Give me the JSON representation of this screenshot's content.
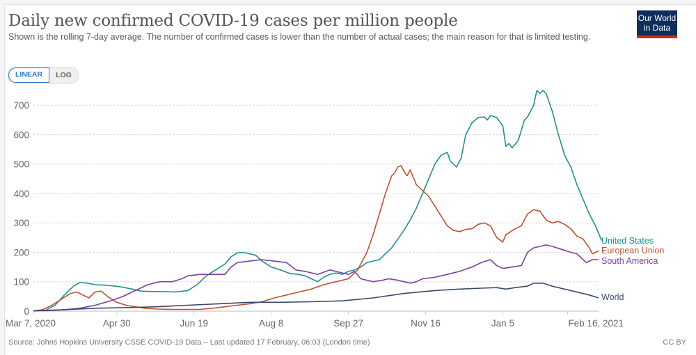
{
  "header": {
    "title": "Daily new confirmed COVID-19 cases per million people",
    "subtitle": "Shown is the rolling 7-day average. The number of confirmed cases is lower than the number of actual cases; the main reason for that is limited testing.",
    "logo_line1": "Our World",
    "logo_line2": "in Data"
  },
  "toggle": {
    "options": [
      "LINEAR",
      "LOG"
    ],
    "selected": "LINEAR"
  },
  "footer": {
    "source": "Source: Johns Hopkins University CSSE COVID-19 Data – Last updated 17 February, 06:03 (London time)",
    "license": "CC BY"
  },
  "chart_data": {
    "type": "line",
    "title": "Daily new confirmed COVID-19 cases per million people",
    "xlabel": "",
    "ylabel": "",
    "x_unit": "days since Mar 7, 2020",
    "x_range": [
      0,
      346
    ],
    "ylim": [
      0,
      750
    ],
    "y_ticks": [
      0,
      100,
      200,
      300,
      400,
      500,
      600,
      700
    ],
    "x_ticks": [
      {
        "day": 0,
        "label": "Mar 7, 2020"
      },
      {
        "day": 54,
        "label": "Apr 30"
      },
      {
        "day": 104,
        "label": "Jun 19"
      },
      {
        "day": 154,
        "label": "Aug 8"
      },
      {
        "day": 204,
        "label": "Sep 27"
      },
      {
        "day": 254,
        "label": "Nov 16"
      },
      {
        "day": 304,
        "label": "Jan 5"
      },
      {
        "day": 346,
        "label": "Feb 16, 2021"
      }
    ],
    "grid": "horizontal dashed",
    "legend": "right, end-of-line labels",
    "series": [
      {
        "name": "United States",
        "color": "#1f8f8f",
        "points": [
          [
            0,
            1
          ],
          [
            8,
            3
          ],
          [
            14,
            20
          ],
          [
            20,
            55
          ],
          [
            26,
            85
          ],
          [
            30,
            97
          ],
          [
            34,
            96
          ],
          [
            40,
            90
          ],
          [
            48,
            88
          ],
          [
            56,
            83
          ],
          [
            64,
            75
          ],
          [
            70,
            68
          ],
          [
            76,
            67
          ],
          [
            84,
            66
          ],
          [
            92,
            65
          ],
          [
            100,
            70
          ],
          [
            106,
            90
          ],
          [
            112,
            120
          ],
          [
            118,
            140
          ],
          [
            124,
            160
          ],
          [
            128,
            185
          ],
          [
            132,
            198
          ],
          [
            136,
            200
          ],
          [
            140,
            195
          ],
          [
            144,
            190
          ],
          [
            148,
            170
          ],
          [
            154,
            150
          ],
          [
            160,
            140
          ],
          [
            166,
            128
          ],
          [
            172,
            125
          ],
          [
            176,
            120
          ],
          [
            180,
            110
          ],
          [
            184,
            100
          ],
          [
            188,
            115
          ],
          [
            192,
            125
          ],
          [
            196,
            130
          ],
          [
            200,
            125
          ],
          [
            204,
            135
          ],
          [
            208,
            140
          ],
          [
            212,
            150
          ],
          [
            216,
            165
          ],
          [
            220,
            170
          ],
          [
            224,
            175
          ],
          [
            228,
            195
          ],
          [
            232,
            215
          ],
          [
            236,
            245
          ],
          [
            240,
            275
          ],
          [
            244,
            310
          ],
          [
            248,
            350
          ],
          [
            252,
            400
          ],
          [
            256,
            450
          ],
          [
            260,
            500
          ],
          [
            264,
            530
          ],
          [
            268,
            540
          ],
          [
            270,
            510
          ],
          [
            274,
            490
          ],
          [
            277,
            520
          ],
          [
            280,
            600
          ],
          [
            284,
            640
          ],
          [
            288,
            658
          ],
          [
            292,
            660
          ],
          [
            294,
            650
          ],
          [
            296,
            665
          ],
          [
            300,
            658
          ],
          [
            304,
            630
          ],
          [
            306,
            560
          ],
          [
            308,
            570
          ],
          [
            310,
            555
          ],
          [
            314,
            580
          ],
          [
            318,
            650
          ],
          [
            320,
            660
          ],
          [
            324,
            700
          ],
          [
            326,
            750
          ],
          [
            328,
            740
          ],
          [
            330,
            750
          ],
          [
            332,
            740
          ],
          [
            336,
            680
          ],
          [
            340,
            600
          ],
          [
            344,
            530
          ],
          [
            348,
            490
          ],
          [
            352,
            430
          ],
          [
            356,
            380
          ],
          [
            360,
            330
          ],
          [
            364,
            290
          ],
          [
            368,
            240
          ]
        ]
      },
      {
        "name": "European Union",
        "color": "#c1502e",
        "points": [
          [
            0,
            1
          ],
          [
            6,
            5
          ],
          [
            12,
            20
          ],
          [
            18,
            40
          ],
          [
            24,
            60
          ],
          [
            28,
            65
          ],
          [
            32,
            55
          ],
          [
            36,
            45
          ],
          [
            40,
            65
          ],
          [
            44,
            68
          ],
          [
            48,
            50
          ],
          [
            54,
            30
          ],
          [
            60,
            20
          ],
          [
            66,
            15
          ],
          [
            72,
            10
          ],
          [
            80,
            7
          ],
          [
            90,
            6
          ],
          [
            100,
            6
          ],
          [
            108,
            6
          ],
          [
            116,
            10
          ],
          [
            124,
            15
          ],
          [
            132,
            20
          ],
          [
            140,
            25
          ],
          [
            148,
            32
          ],
          [
            156,
            45
          ],
          [
            164,
            55
          ],
          [
            172,
            65
          ],
          [
            180,
            75
          ],
          [
            188,
            90
          ],
          [
            196,
            100
          ],
          [
            204,
            110
          ],
          [
            210,
            140
          ],
          [
            216,
            200
          ],
          [
            220,
            260
          ],
          [
            224,
            330
          ],
          [
            228,
            400
          ],
          [
            232,
            460
          ],
          [
            234,
            470
          ],
          [
            236,
            490
          ],
          [
            238,
            495
          ],
          [
            240,
            475
          ],
          [
            242,
            460
          ],
          [
            244,
            480
          ],
          [
            248,
            430
          ],
          [
            252,
            410
          ],
          [
            256,
            390
          ],
          [
            262,
            340
          ],
          [
            268,
            290
          ],
          [
            272,
            275
          ],
          [
            276,
            270
          ],
          [
            280,
            278
          ],
          [
            284,
            280
          ],
          [
            288,
            295
          ],
          [
            292,
            300
          ],
          [
            296,
            290
          ],
          [
            300,
            250
          ],
          [
            304,
            235
          ],
          [
            306,
            260
          ],
          [
            312,
            280
          ],
          [
            316,
            290
          ],
          [
            320,
            330
          ],
          [
            324,
            345
          ],
          [
            328,
            340
          ],
          [
            332,
            310
          ],
          [
            336,
            300
          ],
          [
            340,
            305
          ],
          [
            344,
            295
          ],
          [
            348,
            280
          ],
          [
            352,
            255
          ],
          [
            356,
            245
          ],
          [
            360,
            215
          ],
          [
            362,
            195
          ],
          [
            366,
            205
          ]
        ]
      },
      {
        "name": "South America",
        "color": "#7a3fa2",
        "points": [
          [
            0,
            1
          ],
          [
            10,
            2
          ],
          [
            20,
            5
          ],
          [
            30,
            10
          ],
          [
            40,
            20
          ],
          [
            50,
            35
          ],
          [
            58,
            50
          ],
          [
            66,
            70
          ],
          [
            74,
            90
          ],
          [
            82,
            100
          ],
          [
            90,
            100
          ],
          [
            96,
            110
          ],
          [
            100,
            120
          ],
          [
            108,
            125
          ],
          [
            116,
            125
          ],
          [
            124,
            125
          ],
          [
            128,
            150
          ],
          [
            132,
            165
          ],
          [
            140,
            170
          ],
          [
            148,
            175
          ],
          [
            156,
            170
          ],
          [
            164,
            165
          ],
          [
            170,
            140
          ],
          [
            176,
            135
          ],
          [
            184,
            125
          ],
          [
            192,
            140
          ],
          [
            200,
            130
          ],
          [
            204,
            125
          ],
          [
            208,
            135
          ],
          [
            212,
            110
          ],
          [
            220,
            100
          ],
          [
            226,
            105
          ],
          [
            230,
            110
          ],
          [
            236,
            105
          ],
          [
            240,
            100
          ],
          [
            244,
            95
          ],
          [
            248,
            100
          ],
          [
            252,
            110
          ],
          [
            260,
            115
          ],
          [
            268,
            125
          ],
          [
            276,
            135
          ],
          [
            284,
            150
          ],
          [
            290,
            165
          ],
          [
            296,
            175
          ],
          [
            300,
            155
          ],
          [
            304,
            145
          ],
          [
            310,
            150
          ],
          [
            316,
            155
          ],
          [
            320,
            200
          ],
          [
            324,
            215
          ],
          [
            328,
            220
          ],
          [
            332,
            225
          ],
          [
            336,
            220
          ],
          [
            342,
            210
          ],
          [
            348,
            200
          ],
          [
            352,
            195
          ],
          [
            356,
            175
          ],
          [
            358,
            165
          ],
          [
            362,
            175
          ],
          [
            366,
            175
          ]
        ]
      },
      {
        "name": "World",
        "color": "#38496a",
        "points": [
          [
            0,
            1
          ],
          [
            20,
            5
          ],
          [
            40,
            10
          ],
          [
            60,
            12
          ],
          [
            80,
            15
          ],
          [
            100,
            20
          ],
          [
            120,
            25
          ],
          [
            140,
            30
          ],
          [
            160,
            30
          ],
          [
            180,
            32
          ],
          [
            200,
            35
          ],
          [
            220,
            45
          ],
          [
            240,
            60
          ],
          [
            260,
            70
          ],
          [
            276,
            75
          ],
          [
            290,
            78
          ],
          [
            300,
            80
          ],
          [
            306,
            75
          ],
          [
            312,
            80
          ],
          [
            320,
            85
          ],
          [
            324,
            95
          ],
          [
            330,
            95
          ],
          [
            336,
            85
          ],
          [
            344,
            75
          ],
          [
            352,
            65
          ],
          [
            360,
            55
          ],
          [
            366,
            45
          ]
        ]
      }
    ]
  }
}
